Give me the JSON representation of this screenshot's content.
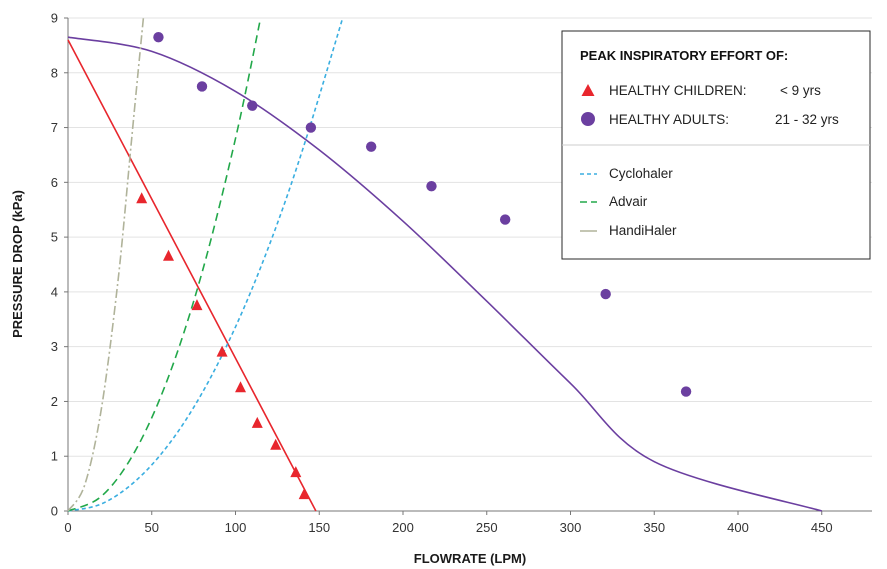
{
  "chart_data": {
    "type": "scatter",
    "xlabel": "FLOWRATE (LPM)",
    "ylabel": "PRESSURE DROP (kPa)",
    "xlim": [
      0,
      480
    ],
    "ylim": [
      0,
      9
    ],
    "x_ticks": [
      "0",
      "50",
      "100",
      "150",
      "200",
      "250",
      "300",
      "350",
      "400",
      "450"
    ],
    "y_ticks": [
      "0",
      "1",
      "2",
      "3",
      "4",
      "5",
      "6",
      "7",
      "8",
      "9"
    ],
    "grid": "horizontal",
    "legend": {
      "position": "top-right",
      "title": "PEAK INSPIRATORY EFFORT OF:",
      "entries": [
        {
          "label": "HEALTHY CHILDREN:",
          "range": "< 9 yrs"
        },
        {
          "label": "HEALTHY ADULTS:",
          "range": "21 - 32 yrs"
        },
        {
          "label": "Cyclohaler"
        },
        {
          "label": "Advair"
        },
        {
          "label": "HandiHaler"
        }
      ]
    },
    "series": [
      {
        "name": "HEALTHY CHILDREN: < 9 yrs",
        "kind": "points",
        "marker": "triangle",
        "color": "#e8262d",
        "points": [
          [
            44,
            5.7
          ],
          [
            60,
            4.65
          ],
          [
            77,
            3.75
          ],
          [
            92,
            2.9
          ],
          [
            103,
            2.25
          ],
          [
            113,
            1.6
          ],
          [
            124,
            1.2
          ],
          [
            136,
            0.7
          ],
          [
            141,
            0.3
          ]
        ]
      },
      {
        "name": "HEALTHY ADULTS: 21 - 32 yrs",
        "kind": "points",
        "marker": "circle",
        "color": "#6b3fa0",
        "points": [
          [
            54,
            8.65
          ],
          [
            80,
            7.75
          ],
          [
            110,
            7.4
          ],
          [
            145,
            7.0
          ],
          [
            181,
            6.65
          ],
          [
            217,
            5.93
          ],
          [
            261,
            5.32
          ],
          [
            321,
            3.96
          ],
          [
            369,
            2.18
          ]
        ]
      },
      {
        "name": "Children fit",
        "kind": "line",
        "color": "#e8262d",
        "dash": "solid",
        "points": [
          [
            0,
            8.6
          ],
          [
            148,
            0
          ]
        ]
      },
      {
        "name": "Adults fit",
        "kind": "curve",
        "color": "#6b3fa0",
        "dash": "solid",
        "points": [
          [
            0,
            8.65
          ],
          [
            50,
            8.39
          ],
          [
            100,
            7.66
          ],
          [
            150,
            6.59
          ],
          [
            200,
            5.29
          ],
          [
            250,
            3.83
          ],
          [
            300,
            2.33
          ],
          [
            350,
            0.9
          ],
          [
            450,
            0
          ]
        ]
      },
      {
        "name": "Cyclohaler",
        "kind": "curve",
        "color": "#3aaee0",
        "dash": "short",
        "points": [
          [
            0,
            0
          ],
          [
            20,
            0.13
          ],
          [
            40,
            0.54
          ],
          [
            60,
            1.21
          ],
          [
            80,
            2.15
          ],
          [
            100,
            3.36
          ],
          [
            120,
            4.84
          ],
          [
            140,
            6.59
          ],
          [
            164,
            9.0
          ]
        ]
      },
      {
        "name": "Advair",
        "kind": "curve",
        "color": "#22a84a",
        "dash": "long",
        "points": [
          [
            0,
            0
          ],
          [
            20,
            0.27
          ],
          [
            40,
            1.09
          ],
          [
            60,
            2.45
          ],
          [
            80,
            4.35
          ],
          [
            100,
            6.8
          ],
          [
            115,
            9.0
          ]
        ]
      },
      {
        "name": "HandiHaler",
        "kind": "curve",
        "color": "#b0b39a",
        "dash": "dashdot",
        "points": [
          [
            0,
            0
          ],
          [
            10,
            0.48
          ],
          [
            20,
            1.88
          ],
          [
            30,
            4.25
          ],
          [
            38,
            6.8
          ],
          [
            45,
            9.0
          ]
        ]
      }
    ]
  }
}
